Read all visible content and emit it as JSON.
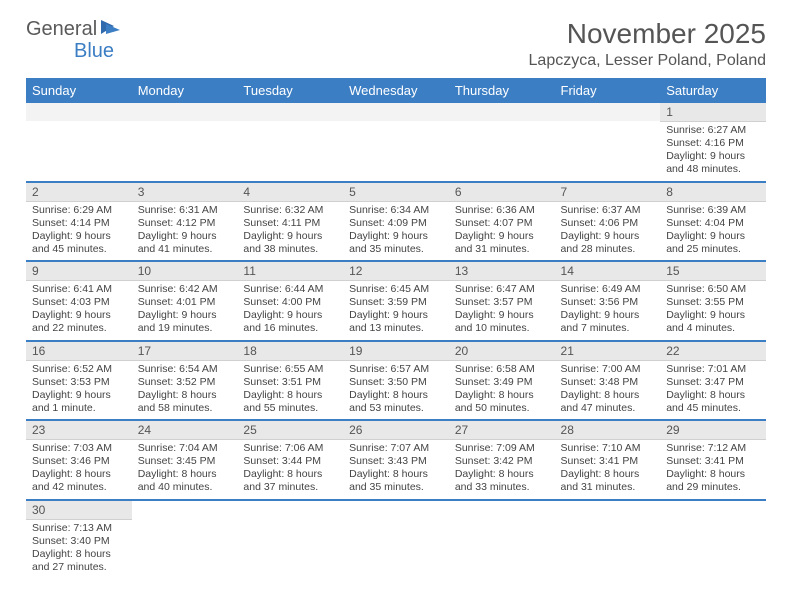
{
  "logo": {
    "part1": "General",
    "part2": "Blue"
  },
  "title": "November 2025",
  "location": "Lapczyca, Lesser Poland, Poland",
  "colors": {
    "header_bg": "#3c7ec4",
    "header_text": "#ffffff",
    "daynum_bg": "#e8e8e8",
    "row_divider": "#3c7ec4",
    "page_bg": "#ffffff",
    "body_text": "#444444",
    "title_text": "#555555",
    "logo_gray": "#5a5a5a",
    "logo_blue": "#3c7ec4"
  },
  "day_names": [
    "Sunday",
    "Monday",
    "Tuesday",
    "Wednesday",
    "Thursday",
    "Friday",
    "Saturday"
  ],
  "weeks": [
    [
      null,
      null,
      null,
      null,
      null,
      null,
      {
        "n": "1",
        "sunrise": "6:27 AM",
        "sunset": "4:16 PM",
        "daylight": "9 hours and 48 minutes."
      }
    ],
    [
      {
        "n": "2",
        "sunrise": "6:29 AM",
        "sunset": "4:14 PM",
        "daylight": "9 hours and 45 minutes."
      },
      {
        "n": "3",
        "sunrise": "6:31 AM",
        "sunset": "4:12 PM",
        "daylight": "9 hours and 41 minutes."
      },
      {
        "n": "4",
        "sunrise": "6:32 AM",
        "sunset": "4:11 PM",
        "daylight": "9 hours and 38 minutes."
      },
      {
        "n": "5",
        "sunrise": "6:34 AM",
        "sunset": "4:09 PM",
        "daylight": "9 hours and 35 minutes."
      },
      {
        "n": "6",
        "sunrise": "6:36 AM",
        "sunset": "4:07 PM",
        "daylight": "9 hours and 31 minutes."
      },
      {
        "n": "7",
        "sunrise": "6:37 AM",
        "sunset": "4:06 PM",
        "daylight": "9 hours and 28 minutes."
      },
      {
        "n": "8",
        "sunrise": "6:39 AM",
        "sunset": "4:04 PM",
        "daylight": "9 hours and 25 minutes."
      }
    ],
    [
      {
        "n": "9",
        "sunrise": "6:41 AM",
        "sunset": "4:03 PM",
        "daylight": "9 hours and 22 minutes."
      },
      {
        "n": "10",
        "sunrise": "6:42 AM",
        "sunset": "4:01 PM",
        "daylight": "9 hours and 19 minutes."
      },
      {
        "n": "11",
        "sunrise": "6:44 AM",
        "sunset": "4:00 PM",
        "daylight": "9 hours and 16 minutes."
      },
      {
        "n": "12",
        "sunrise": "6:45 AM",
        "sunset": "3:59 PM",
        "daylight": "9 hours and 13 minutes."
      },
      {
        "n": "13",
        "sunrise": "6:47 AM",
        "sunset": "3:57 PM",
        "daylight": "9 hours and 10 minutes."
      },
      {
        "n": "14",
        "sunrise": "6:49 AM",
        "sunset": "3:56 PM",
        "daylight": "9 hours and 7 minutes."
      },
      {
        "n": "15",
        "sunrise": "6:50 AM",
        "sunset": "3:55 PM",
        "daylight": "9 hours and 4 minutes."
      }
    ],
    [
      {
        "n": "16",
        "sunrise": "6:52 AM",
        "sunset": "3:53 PM",
        "daylight": "9 hours and 1 minute."
      },
      {
        "n": "17",
        "sunrise": "6:54 AM",
        "sunset": "3:52 PM",
        "daylight": "8 hours and 58 minutes."
      },
      {
        "n": "18",
        "sunrise": "6:55 AM",
        "sunset": "3:51 PM",
        "daylight": "8 hours and 55 minutes."
      },
      {
        "n": "19",
        "sunrise": "6:57 AM",
        "sunset": "3:50 PM",
        "daylight": "8 hours and 53 minutes."
      },
      {
        "n": "20",
        "sunrise": "6:58 AM",
        "sunset": "3:49 PM",
        "daylight": "8 hours and 50 minutes."
      },
      {
        "n": "21",
        "sunrise": "7:00 AM",
        "sunset": "3:48 PM",
        "daylight": "8 hours and 47 minutes."
      },
      {
        "n": "22",
        "sunrise": "7:01 AM",
        "sunset": "3:47 PM",
        "daylight": "8 hours and 45 minutes."
      }
    ],
    [
      {
        "n": "23",
        "sunrise": "7:03 AM",
        "sunset": "3:46 PM",
        "daylight": "8 hours and 42 minutes."
      },
      {
        "n": "24",
        "sunrise": "7:04 AM",
        "sunset": "3:45 PM",
        "daylight": "8 hours and 40 minutes."
      },
      {
        "n": "25",
        "sunrise": "7:06 AM",
        "sunset": "3:44 PM",
        "daylight": "8 hours and 37 minutes."
      },
      {
        "n": "26",
        "sunrise": "7:07 AM",
        "sunset": "3:43 PM",
        "daylight": "8 hours and 35 minutes."
      },
      {
        "n": "27",
        "sunrise": "7:09 AM",
        "sunset": "3:42 PM",
        "daylight": "8 hours and 33 minutes."
      },
      {
        "n": "28",
        "sunrise": "7:10 AM",
        "sunset": "3:41 PM",
        "daylight": "8 hours and 31 minutes."
      },
      {
        "n": "29",
        "sunrise": "7:12 AM",
        "sunset": "3:41 PM",
        "daylight": "8 hours and 29 minutes."
      }
    ],
    [
      {
        "n": "30",
        "sunrise": "7:13 AM",
        "sunset": "3:40 PM",
        "daylight": "8 hours and 27 minutes."
      },
      null,
      null,
      null,
      null,
      null,
      null
    ]
  ],
  "labels": {
    "sunrise": "Sunrise:",
    "sunset": "Sunset:",
    "daylight": "Daylight:"
  }
}
